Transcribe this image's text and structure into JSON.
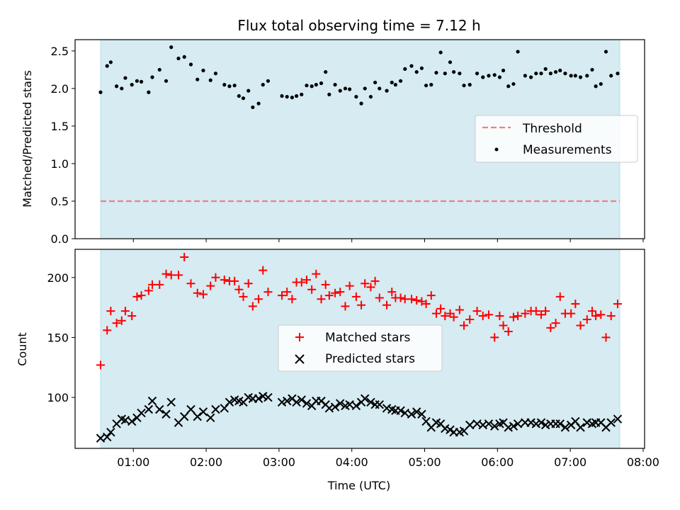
{
  "chart_data": [
    {
      "type": "scatter",
      "title": "Flux total observing time = 7.12 h",
      "xlabel": "",
      "ylabel": "Matched/Predicted stars",
      "ylim": [
        0,
        2.65
      ],
      "yticks": [
        "0.0",
        "0.5",
        "1.0",
        "1.5",
        "2.0",
        "2.5"
      ],
      "xlim_hours": [
        0.2,
        8.02
      ],
      "shaded_span_hours": [
        0.55,
        7.68
      ],
      "shaded_color": "#add8e6",
      "threshold": {
        "name": "Threshold",
        "value": 0.5,
        "color": "#f08080",
        "style": "dashed"
      },
      "legend": {
        "position": "center-right",
        "entries": [
          "Threshold",
          "Measurements"
        ]
      },
      "series": [
        {
          "name": "Measurements",
          "color": "#000000",
          "marker": "dot",
          "x": [
            0.55,
            0.64,
            0.69,
            0.77,
            0.84,
            0.89,
            0.98,
            1.05,
            1.11,
            1.21,
            1.26,
            1.36,
            1.45,
            1.52,
            1.62,
            1.7,
            1.79,
            1.88,
            1.96,
            2.06,
            2.13,
            2.25,
            2.32,
            2.39,
            2.45,
            2.51,
            2.58,
            2.64,
            2.72,
            2.78,
            2.85,
            3.04,
            3.11,
            3.18,
            3.24,
            3.31,
            3.38,
            3.45,
            3.51,
            3.58,
            3.64,
            3.69,
            3.77,
            3.84,
            3.91,
            3.97,
            4.06,
            4.13,
            4.18,
            4.26,
            4.32,
            4.38,
            4.48,
            4.55,
            4.6,
            4.67,
            4.73,
            4.82,
            4.89,
            4.96,
            5.02,
            5.09,
            5.16,
            5.22,
            5.28,
            5.35,
            5.4,
            5.48,
            5.54,
            5.62,
            5.72,
            5.8,
            5.88,
            5.96,
            6.03,
            6.08,
            6.15,
            6.22,
            6.28,
            6.38,
            6.46,
            6.53,
            6.6,
            6.66,
            6.73,
            6.8,
            6.86,
            6.93,
            7.01,
            7.07,
            7.14,
            7.23,
            7.3,
            7.35,
            7.42,
            7.49,
            7.56,
            7.65
          ],
          "y": [
            1.95,
            2.3,
            2.35,
            2.03,
            2.0,
            2.14,
            2.05,
            2.1,
            2.09,
            1.95,
            2.15,
            2.25,
            2.1,
            2.55,
            2.4,
            2.42,
            2.32,
            2.12,
            2.24,
            2.11,
            2.2,
            2.05,
            2.03,
            2.04,
            1.9,
            1.87,
            1.97,
            1.75,
            1.8,
            2.05,
            2.1,
            1.9,
            1.89,
            1.88,
            1.9,
            1.92,
            2.04,
            2.03,
            2.05,
            2.07,
            2.22,
            1.92,
            2.05,
            1.97,
            2.0,
            1.99,
            1.89,
            1.8,
            2.0,
            1.89,
            2.08,
            2.0,
            1.97,
            2.08,
            2.05,
            2.1,
            2.26,
            2.3,
            2.22,
            2.27,
            2.04,
            2.05,
            2.21,
            2.48,
            2.2,
            2.35,
            2.22,
            2.2,
            2.04,
            2.05,
            2.2,
            2.15,
            2.17,
            2.18,
            2.15,
            2.24,
            2.03,
            2.06,
            2.49,
            2.17,
            2.15,
            2.2,
            2.2,
            2.26,
            2.2,
            2.22,
            2.24,
            2.2,
            2.17,
            2.17,
            2.15,
            2.17,
            2.25,
            2.03,
            2.06,
            2.49,
            2.17,
            2.2
          ]
        }
      ]
    },
    {
      "type": "scatter",
      "title": "",
      "xlabel": "Time (UTC)",
      "ylabel": "Count",
      "ylim": [
        57.5,
        223.5
      ],
      "yticks": [
        "100",
        "150",
        "200"
      ],
      "xlim_hours": [
        0.2,
        8.02
      ],
      "xticks": [
        "01:00",
        "02:00",
        "03:00",
        "04:00",
        "05:00",
        "06:00",
        "07:00",
        "08:00"
      ],
      "shaded_span_hours": [
        0.55,
        7.68
      ],
      "shaded_color": "#add8e6",
      "legend": {
        "position": "center",
        "entries": [
          "Matched stars",
          "Predicted stars"
        ]
      },
      "series": [
        {
          "name": "Matched stars",
          "color": "#ff0000",
          "marker": "plus",
          "x": [
            0.55,
            0.64,
            0.69,
            0.77,
            0.84,
            0.89,
            0.98,
            1.05,
            1.11,
            1.21,
            1.26,
            1.36,
            1.45,
            1.52,
            1.62,
            1.7,
            1.79,
            1.88,
            1.96,
            2.06,
            2.13,
            2.25,
            2.32,
            2.39,
            2.45,
            2.51,
            2.58,
            2.64,
            2.72,
            2.78,
            2.85,
            3.04,
            3.11,
            3.18,
            3.24,
            3.31,
            3.38,
            3.45,
            3.51,
            3.58,
            3.64,
            3.69,
            3.77,
            3.84,
            3.91,
            3.97,
            4.06,
            4.13,
            4.18,
            4.26,
            4.32,
            4.38,
            4.48,
            4.55,
            4.6,
            4.67,
            4.73,
            4.82,
            4.89,
            4.96,
            5.02,
            5.09,
            5.16,
            5.22,
            5.28,
            5.35,
            5.4,
            5.48,
            5.54,
            5.62,
            5.72,
            5.8,
            5.88,
            5.96,
            6.03,
            6.08,
            6.15,
            6.22,
            6.28,
            6.38,
            6.46,
            6.53,
            6.6,
            6.66,
            6.73,
            6.8,
            6.86,
            6.93,
            7.01,
            7.07,
            7.14,
            7.23,
            7.3,
            7.35,
            7.42,
            7.49,
            7.56,
            7.65
          ],
          "y": [
            127,
            156,
            172,
            162,
            164,
            172,
            168,
            184,
            185,
            189,
            194,
            194,
            203,
            202,
            202,
            217,
            195,
            187,
            186,
            193,
            200,
            198,
            197,
            197,
            190,
            184,
            195,
            176,
            182,
            206,
            188,
            185,
            188,
            182,
            196,
            196,
            198,
            190,
            203,
            182,
            194,
            185,
            187,
            188,
            176,
            193,
            184,
            177,
            195,
            192,
            197,
            183,
            177,
            188,
            183,
            183,
            182,
            182,
            181,
            180,
            178,
            185,
            170,
            174,
            168,
            170,
            167,
            173,
            160,
            165,
            172,
            168,
            169,
            150,
            168,
            160,
            155,
            167,
            168,
            170,
            172,
            172,
            169,
            172,
            158,
            162,
            184,
            170,
            170,
            178,
            160,
            165,
            172,
            168,
            169,
            150,
            168,
            178
          ]
        },
        {
          "name": "Predicted stars",
          "color": "#000000",
          "marker": "x",
          "x": [
            0.55,
            0.64,
            0.69,
            0.77,
            0.84,
            0.89,
            0.98,
            1.05,
            1.11,
            1.21,
            1.26,
            1.36,
            1.45,
            1.52,
            1.62,
            1.7,
            1.79,
            1.88,
            1.96,
            2.06,
            2.13,
            2.25,
            2.32,
            2.39,
            2.45,
            2.51,
            2.58,
            2.64,
            2.72,
            2.78,
            2.85,
            3.04,
            3.11,
            3.18,
            3.24,
            3.31,
            3.38,
            3.45,
            3.51,
            3.58,
            3.64,
            3.69,
            3.77,
            3.84,
            3.91,
            3.97,
            4.06,
            4.13,
            4.18,
            4.26,
            4.32,
            4.38,
            4.48,
            4.55,
            4.6,
            4.67,
            4.73,
            4.82,
            4.89,
            4.96,
            5.02,
            5.09,
            5.16,
            5.22,
            5.28,
            5.35,
            5.4,
            5.48,
            5.54,
            5.62,
            5.72,
            5.8,
            5.88,
            5.96,
            6.03,
            6.08,
            6.15,
            6.22,
            6.28,
            6.38,
            6.46,
            6.53,
            6.6,
            6.66,
            6.73,
            6.8,
            6.86,
            6.93,
            7.01,
            7.07,
            7.14,
            7.23,
            7.3,
            7.35,
            7.42,
            7.49,
            7.56,
            7.65
          ],
          "y": [
            66,
            67,
            71,
            78,
            82,
            81,
            80,
            83,
            87,
            90,
            97,
            90,
            86,
            96,
            79,
            84,
            90,
            84,
            88,
            83,
            90,
            91,
            96,
            98,
            97,
            96,
            100,
            99,
            99,
            101,
            100,
            96,
            97,
            99,
            96,
            98,
            95,
            93,
            97,
            97,
            94,
            91,
            92,
            95,
            93,
            94,
            93,
            96,
            99,
            96,
            94,
            94,
            91,
            90,
            89,
            89,
            87,
            86,
            88,
            86,
            80,
            75,
            79,
            78,
            74,
            73,
            71,
            71,
            72,
            77,
            78,
            77,
            78,
            76,
            78,
            79,
            75,
            76,
            78,
            79,
            79,
            78,
            79,
            77,
            78,
            78,
            78,
            75,
            77,
            80,
            75,
            79,
            78,
            79,
            79,
            75,
            79,
            82
          ]
        }
      ]
    }
  ]
}
